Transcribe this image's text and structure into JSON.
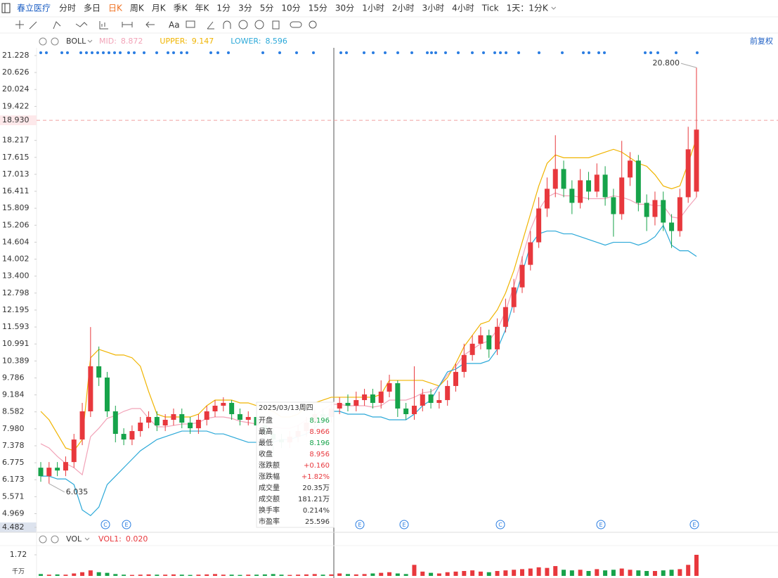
{
  "toolbar": {
    "stock": "春立医疗",
    "tabs": [
      "分时",
      "多日",
      "日K",
      "周K",
      "月K",
      "季K",
      "年K",
      "1分",
      "3分",
      "5分",
      "10分",
      "15分",
      "30分",
      "1小时",
      "2小时",
      "3小时",
      "4小时",
      "Tick",
      "1天：1分K"
    ],
    "active_tab": "日K",
    "font_tool": "Aa"
  },
  "chart_data": {
    "type": "candlestick",
    "indicator": "BOLL",
    "adjust": "前复权",
    "up_color": "#e8383d",
    "down_color": "#16a34a",
    "open": [
      6.6,
      6.3,
      6.6,
      6.5,
      6.8,
      7.6,
      8.6,
      10.2,
      9.8,
      8.6,
      7.8,
      7.6,
      7.9,
      8.2,
      8.4,
      8.1,
      8.3,
      8.5,
      8.2,
      8.0,
      8.3,
      8.6,
      8.8,
      8.9,
      8.5,
      8.3,
      8.4,
      8.1,
      7.8,
      7.6,
      7.5,
      7.7,
      7.9,
      8.2,
      8.5,
      8.4,
      8.7,
      8.9,
      8.8,
      9.0,
      9.2,
      8.9,
      9.3,
      9.6,
      8.7,
      8.5,
      8.8,
      9.2,
      8.9,
      9.0,
      9.5,
      10.0,
      10.6,
      11.0,
      11.3,
      10.8,
      11.6,
      12.3,
      13.0,
      13.8,
      14.6,
      15.8,
      16.5,
      17.2,
      16.5,
      16.0,
      16.8,
      16.4,
      17.0,
      16.2,
      15.6,
      16.9,
      17.5,
      16.0,
      15.5,
      16.1,
      15.3,
      15.0,
      16.2,
      16.4
    ],
    "high": [
      6.8,
      6.8,
      6.8,
      7.0,
      7.8,
      8.9,
      11.593,
      10.9,
      10.0,
      8.8,
      8.0,
      8.1,
      8.4,
      8.6,
      8.6,
      8.5,
      8.7,
      8.7,
      8.4,
      8.5,
      8.8,
      9.0,
      9.1,
      9.0,
      8.7,
      8.6,
      8.6,
      8.3,
      8.0,
      7.8,
      7.9,
      8.1,
      8.4,
      8.7,
      8.7,
      8.9,
      9.1,
      9.2,
      9.3,
      9.4,
      9.4,
      9.7,
      9.9,
      9.7,
      8.9,
      10.2,
      9.4,
      9.4,
      9.3,
      9.7,
      10.3,
      11.0,
      11.3,
      11.6,
      11.5,
      11.9,
      12.6,
      13.3,
      14.1,
      15.0,
      16.2,
      16.9,
      18.4,
      17.5,
      16.8,
      17.2,
      17.1,
      17.4,
      17.3,
      16.5,
      18.2,
      17.8,
      17.7,
      16.3,
      16.4,
      16.4,
      15.6,
      16.5,
      18.7,
      20.8
    ],
    "low": [
      6.1,
      6.035,
      6.3,
      6.3,
      6.6,
      7.4,
      8.4,
      9.5,
      8.4,
      7.5,
      7.4,
      7.4,
      7.7,
      8.0,
      7.9,
      7.9,
      8.1,
      8.0,
      7.8,
      7.8,
      8.1,
      8.4,
      8.6,
      8.3,
      8.1,
      8.1,
      7.9,
      7.6,
      7.0,
      7.3,
      7.3,
      7.5,
      7.7,
      8.0,
      8.2,
      8.2,
      8.5,
      8.6,
      8.6,
      8.8,
      8.7,
      8.7,
      9.1,
      8.4,
      8.3,
      8.3,
      8.6,
      8.7,
      8.7,
      8.8,
      9.3,
      9.8,
      10.4,
      10.8,
      10.5,
      10.6,
      11.4,
      12.1,
      12.8,
      13.6,
      14.4,
      15.5,
      16.2,
      16.2,
      15.6,
      15.8,
      16.1,
      16.2,
      15.9,
      14.8,
      15.4,
      16.6,
      15.7,
      15.0,
      15.2,
      15.0,
      14.4,
      14.8,
      16.0,
      16.2
    ],
    "close": [
      6.3,
      6.6,
      6.5,
      6.8,
      7.6,
      8.6,
      10.2,
      9.8,
      8.6,
      7.8,
      7.6,
      7.9,
      8.2,
      8.4,
      8.1,
      8.3,
      8.5,
      8.2,
      8.0,
      8.3,
      8.6,
      8.8,
      8.9,
      8.5,
      8.3,
      8.4,
      8.1,
      7.8,
      7.6,
      7.5,
      7.7,
      7.9,
      8.2,
      8.5,
      8.4,
      8.7,
      8.9,
      8.8,
      9.0,
      9.2,
      8.9,
      9.3,
      9.6,
      8.7,
      8.5,
      8.8,
      9.2,
      8.9,
      9.0,
      9.5,
      10.0,
      10.6,
      11.0,
      11.3,
      10.8,
      11.6,
      12.3,
      13.0,
      13.8,
      14.6,
      15.8,
      16.5,
      17.2,
      16.5,
      16.0,
      16.8,
      16.4,
      17.0,
      16.2,
      15.6,
      16.9,
      17.5,
      16.0,
      15.5,
      16.1,
      15.3,
      15.0,
      16.2,
      17.9,
      18.6
    ],
    "series": [
      {
        "name": "MID:",
        "legend_value": 8.872,
        "color": "#f2a3b8",
        "values": [
          7.45,
          7.3,
          7.0,
          6.75,
          6.6,
          6.35,
          7.7,
          8.0,
          8.35,
          8.45,
          8.6,
          8.7,
          8.7,
          8.35,
          8.05,
          8.05,
          8.1,
          8.15,
          8.15,
          8.2,
          8.35,
          8.4,
          8.4,
          8.35,
          8.25,
          8.2,
          8.15,
          8.1,
          8.05,
          8.0,
          8.0,
          8.1,
          8.3,
          8.45,
          8.65,
          8.85,
          8.85,
          8.8,
          8.8,
          8.8,
          8.75,
          8.8,
          9.0,
          9.0,
          9.0,
          9.1,
          9.25,
          9.3,
          9.5,
          9.9,
          10.2,
          10.6,
          10.8,
          11.0,
          11.1,
          11.5,
          12.15,
          13.05,
          14.05,
          15.05,
          15.75,
          16.2,
          16.35,
          16.25,
          16.25,
          16.2,
          16.15,
          16.15,
          16.15,
          16.25,
          16.2,
          16.1,
          15.95,
          15.95,
          15.9,
          15.9,
          15.5,
          15.45,
          15.85,
          16.2
        ]
      },
      {
        "name": "UPPER:",
        "legend_value": 9.147,
        "color": "#f0b400",
        "values": [
          8.6,
          8.3,
          7.8,
          7.3,
          7.2,
          7.6,
          10.5,
          10.8,
          10.7,
          10.6,
          10.6,
          10.5,
          10.2,
          9.3,
          8.5,
          8.4,
          8.4,
          8.4,
          8.4,
          8.5,
          8.8,
          9.0,
          9.0,
          9.0,
          8.9,
          8.9,
          8.8,
          8.7,
          8.6,
          8.4,
          8.4,
          8.5,
          8.8,
          8.9,
          9.0,
          9.1,
          9.1,
          9.1,
          9.1,
          9.1,
          9.1,
          9.2,
          9.7,
          9.7,
          9.7,
          9.7,
          9.7,
          9.6,
          9.5,
          9.8,
          10.3,
          10.9,
          11.3,
          11.7,
          11.8,
          12.2,
          12.8,
          13.6,
          14.6,
          15.6,
          16.6,
          17.4,
          17.7,
          17.6,
          17.6,
          17.6,
          17.6,
          17.7,
          17.8,
          17.9,
          17.8,
          17.6,
          17.4,
          17.3,
          17.0,
          16.6,
          16.5,
          16.6,
          17.4,
          18.3
        ]
      },
      {
        "name": "LOWER:",
        "legend_value": 8.596,
        "color": "#2aa8d8",
        "values": [
          6.3,
          6.3,
          6.2,
          6.2,
          6.0,
          5.1,
          4.9,
          5.2,
          6.0,
          6.3,
          6.6,
          6.9,
          7.2,
          7.4,
          7.6,
          7.7,
          7.8,
          7.9,
          7.9,
          7.9,
          7.9,
          7.8,
          7.8,
          7.7,
          7.6,
          7.5,
          7.5,
          7.5,
          7.5,
          7.6,
          7.6,
          7.7,
          7.8,
          8.0,
          8.3,
          8.6,
          8.6,
          8.5,
          8.5,
          8.5,
          8.4,
          8.4,
          8.3,
          8.3,
          8.3,
          8.5,
          8.8,
          9.0,
          9.5,
          10.0,
          10.1,
          10.3,
          10.3,
          10.3,
          10.4,
          10.8,
          11.5,
          12.5,
          13.5,
          14.5,
          14.9,
          15.0,
          15.0,
          14.9,
          14.9,
          14.8,
          14.7,
          14.6,
          14.5,
          14.6,
          14.6,
          14.6,
          14.5,
          14.6,
          14.8,
          15.2,
          14.5,
          14.3,
          14.3,
          14.1
        ]
      }
    ],
    "ylim": [
      4.482,
      21.228
    ],
    "yticks": [
      4.482,
      4.969,
      5.571,
      6.173,
      6.775,
      7.378,
      {
        "value": 7.98,
        "label": "7.980"
      },
      8.582,
      9.184,
      9.786,
      10.389,
      10.991,
      11.593,
      12.195,
      12.798,
      {
        "value": 13.4,
        "label": "13.400"
      },
      14.002,
      14.604,
      15.206,
      15.809,
      16.411,
      17.013,
      17.615,
      18.217,
      19.422,
      20.024,
      20.626,
      21.228
    ],
    "crosshair": {
      "value": 18.93,
      "label": "18.930"
    },
    "annotations": [
      {
        "value": 20.8,
        "label": "20.800"
      },
      {
        "value": 6.035,
        "label": "6.035"
      }
    ],
    "event_markers": [
      "C",
      "E",
      "E",
      "E",
      "C",
      "E",
      "E"
    ],
    "tooltip": {
      "date": "2025/03/13周四",
      "rows": [
        {
          "label": "开盘",
          "value": "8.196",
          "color": "#16a34a"
        },
        {
          "label": "最高",
          "value": "8.966",
          "color": "#e8383d"
        },
        {
          "label": "最低",
          "value": "8.196",
          "color": "#16a34a"
        },
        {
          "label": "收盘",
          "value": "8.956",
          "color": "#e8383d"
        },
        {
          "label": "涨跌额",
          "value": "+0.160",
          "color": "#e8383d"
        },
        {
          "label": "涨跌幅",
          "value": "+1.82%",
          "color": "#e8383d"
        },
        {
          "label": "成交量",
          "value": "20.35万",
          "color": "#333333"
        },
        {
          "label": "成交额",
          "value": "181.21万",
          "color": "#333333"
        },
        {
          "label": "换手率",
          "value": "0.214%",
          "color": "#333333"
        },
        {
          "label": "市盈率",
          "value": "25.596",
          "color": "#333333"
        }
      ]
    },
    "volume_panel": {
      "name": "VOL",
      "legend": "VOL1:",
      "legend_value": {
        "value": 0.02,
        "label": "0.020"
      },
      "unit": "千万",
      "ylim": [
        0,
        1.72
      ],
      "yticks": [
        1.72
      ],
      "values": [
        0.15,
        0.1,
        0.12,
        0.1,
        0.2,
        0.3,
        0.45,
        0.3,
        0.25,
        0.15,
        0.1,
        0.08,
        0.1,
        0.12,
        0.1,
        0.1,
        0.12,
        0.1,
        0.08,
        0.1,
        0.12,
        0.15,
        0.1,
        0.1,
        0.08,
        0.1,
        0.1,
        0.12,
        0.15,
        0.1,
        0.08,
        0.1,
        0.12,
        0.15,
        0.1,
        0.12,
        0.2,
        0.15,
        0.12,
        0.15,
        0.2,
        0.25,
        0.3,
        0.2,
        0.15,
        0.9,
        0.35,
        0.25,
        0.2,
        0.3,
        0.35,
        0.4,
        0.45,
        0.35,
        0.3,
        0.4,
        0.45,
        0.5,
        0.55,
        0.6,
        0.7,
        0.65,
        0.8,
        0.5,
        0.45,
        0.5,
        0.4,
        0.55,
        0.45,
        0.5,
        0.6,
        0.5,
        0.45,
        0.4,
        0.4,
        0.45,
        0.5,
        0.55,
        0.9,
        1.72
      ]
    }
  }
}
